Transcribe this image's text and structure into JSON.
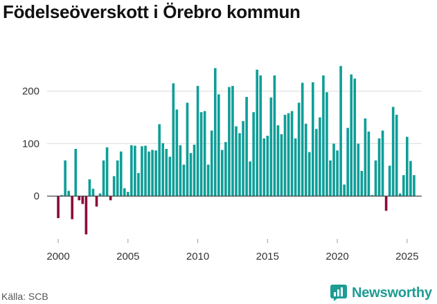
{
  "title": "Födelseöverskott i Örebro kommun",
  "source": "Källa: SCB",
  "brand": {
    "name": "Newsworthy",
    "icon": "newsworthy-logo-icon"
  },
  "colors": {
    "positive": "#0f9e98",
    "negative": "#8a0a3c",
    "grid": "#dcdcdc",
    "axis": "#333333",
    "brand": "#1d9c93"
  },
  "chart_data": {
    "type": "bar",
    "title": "Födelseöverskott i Örebro kommun",
    "xlabel": "",
    "ylabel": "",
    "frequency": "quarterly",
    "start": 2000.0,
    "ylim": [
      -75,
      255
    ],
    "xlim": [
      1999.6,
      2026.2
    ],
    "yticks": [
      0,
      100,
      200
    ],
    "ytick_labels": [
      "0",
      "100",
      "200"
    ],
    "xticks": [
      2000,
      2005,
      2010,
      2015,
      2020,
      2025
    ],
    "xtick_labels": [
      "2000",
      "2005",
      "2010",
      "2015",
      "2020",
      "2025"
    ],
    "values": [
      -42,
      2,
      68,
      10,
      -44,
      90,
      -8,
      -15,
      -73,
      32,
      14,
      -20,
      5,
      68,
      93,
      -8,
      38,
      68,
      85,
      15,
      8,
      97,
      96,
      44,
      95,
      96,
      85,
      88,
      87,
      137,
      101,
      90,
      75,
      215,
      165,
      97,
      60,
      178,
      82,
      98,
      210,
      160,
      162,
      60,
      125,
      244,
      194,
      88,
      103,
      208,
      210,
      133,
      120,
      143,
      189,
      66,
      160,
      241,
      230,
      110,
      115,
      188,
      230,
      135,
      118,
      155,
      158,
      162,
      110,
      178,
      216,
      138,
      84,
      217,
      128,
      150,
      230,
      198,
      68,
      100,
      87,
      248,
      22,
      130,
      232,
      224,
      100,
      48,
      148,
      123,
      2,
      68,
      110,
      125,
      -28,
      58,
      170,
      155,
      5,
      40,
      113,
      67,
      40
    ]
  }
}
